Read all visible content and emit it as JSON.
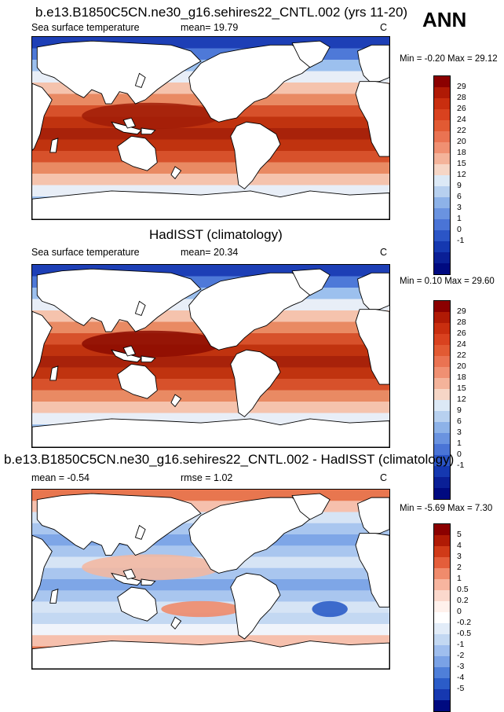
{
  "header": {
    "season_label": "ANN"
  },
  "panels": [
    {
      "title": "b.e13.B1850C5CN.ne30_g16.sehires22_CNTL.002 (yrs 11-20)",
      "variable": "Sea surface temperature",
      "stat1": "mean=  19.79",
      "stat2": "",
      "units": "C",
      "minmax": "Min = -0.20 Max =  29.12",
      "colorbar": {
        "labels": [
          "29",
          "28",
          "26",
          "24",
          "22",
          "20",
          "18",
          "15",
          "12",
          "9",
          "6",
          "3",
          "1",
          "0",
          "-1"
        ],
        "colors": [
          "#8b0000",
          "#b01a05",
          "#c92e0f",
          "#d9421f",
          "#e25a33",
          "#ea7352",
          "#f09072",
          "#f4b39a",
          "#f6d6c6",
          "#dce9f6",
          "#b7d0ef",
          "#8db2e8",
          "#6a93e0",
          "#4a74d6",
          "#2b55c6",
          "#1538b0",
          "#0a1f96",
          "#000a80"
        ]
      },
      "field": {
        "band_colors": [
          "#1d3fb6",
          "#4e79d8",
          "#9cc0ee",
          "#e8eef7",
          "#f5c3ad",
          "#e98a63",
          "#d7512b",
          "#c0330f",
          "#a8220a",
          "#c0330f",
          "#d7512b",
          "#e98a63",
          "#f5c3ad",
          "#e8eef7",
          "#9cc0ee",
          "#4e79d8"
        ],
        "warm_pool_color": "#a01c07",
        "anomaly_colors": []
      }
    },
    {
      "title": "HadISST (climatology)",
      "variable": "Sea surface temperature",
      "stat1": "mean=  20.34",
      "stat2": "",
      "units": "C",
      "minmax": "Min =  0.10 Max =  29.60",
      "colorbar": {
        "labels": [
          "29",
          "28",
          "26",
          "24",
          "22",
          "20",
          "18",
          "15",
          "12",
          "9",
          "6",
          "3",
          "1",
          "0",
          "-1"
        ],
        "colors": [
          "#8b0000",
          "#b01a05",
          "#c92e0f",
          "#d9421f",
          "#e25a33",
          "#ea7352",
          "#f09072",
          "#f4b39a",
          "#f6d6c6",
          "#dce9f6",
          "#b7d0ef",
          "#8db2e8",
          "#6a93e0",
          "#4a74d6",
          "#2b55c6",
          "#1538b0",
          "#0a1f96",
          "#000a80"
        ]
      },
      "field": {
        "band_colors": [
          "#1d3fb6",
          "#4e79d8",
          "#9cc0ee",
          "#e8eef7",
          "#f5c3ad",
          "#e98a63",
          "#d7512b",
          "#c0330f",
          "#a8220a",
          "#c0330f",
          "#d7512b",
          "#e98a63",
          "#f5c3ad",
          "#e8eef7",
          "#9cc0ee",
          "#4e79d8"
        ],
        "warm_pool_color": "#8b0a00",
        "anomaly_colors": []
      }
    },
    {
      "title": "b.e13.B1850C5CN.ne30_g16.sehires22_CNTL.002 - HadISST (climatology)",
      "variable": "",
      "stat1": "mean =  -0.54",
      "stat2": "rmse =  1.02",
      "units": "C",
      "minmax": "Min = -5.69 Max =   7.30",
      "colorbar": {
        "labels": [
          "5",
          "4",
          "3",
          "2",
          "1",
          "0.5",
          "0.2",
          "0",
          "-0.2",
          "-0.5",
          "-1",
          "-2",
          "-3",
          "-4",
          "-5"
        ],
        "colors": [
          "#8b0000",
          "#b01a05",
          "#d03a18",
          "#e45e3b",
          "#f08b6c",
          "#f7b59f",
          "#fbd8cc",
          "#fff1ec",
          "#ffffff",
          "#e2ecf8",
          "#c3d8f2",
          "#9fbeee",
          "#7aa2e6",
          "#4f7fd9",
          "#2b5cc8",
          "#1638b0",
          "#000a80"
        ]
      },
      "field": {
        "band_colors": [
          "#e8764f",
          "#f6c0ad",
          "#d6e4f5",
          "#a9c6ef",
          "#7ea6e7",
          "#a9c6ef",
          "#d6e4f5",
          "#a9c6ef",
          "#7ea6e7",
          "#a9c6ef",
          "#d6e4f5",
          "#c3d8f2",
          "#f0f4fb",
          "#f6c0ad",
          "#e8764f",
          "#d34a2a"
        ],
        "warm_pool_color": "#f4b69e",
        "anomaly_colors": [
          "#3f6fd4",
          "#e45e3b",
          "#2b5cc8",
          "#f08b6c"
        ]
      }
    }
  ]
}
